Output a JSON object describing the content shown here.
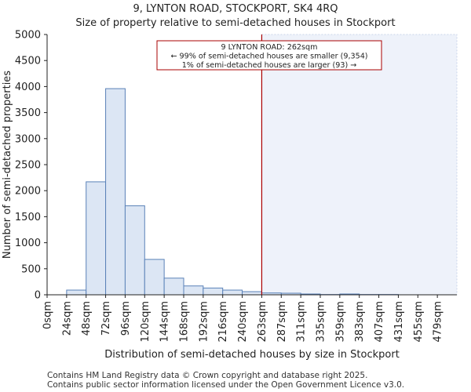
{
  "title": "9, LYNTON ROAD, STOCKPORT, SK4 4RQ",
  "subtitle": "Size of property relative to semi-detached houses in Stockport",
  "footer": [
    "Contains HM Land Registry data © Crown copyright and database right 2025.",
    "Contains public sector information licensed under the Open Government Licence v3.0."
  ],
  "colors": {
    "bar_fill": "#dce6f4",
    "bar_edge": "#5a82b8",
    "highlight_fill": "#eef2fa",
    "marker_line": "#aa0000",
    "annotation_border": "#aa0000",
    "axis": "#222222"
  },
  "chart_data": {
    "type": "bar",
    "title": "9, LYNTON ROAD, STOCKPORT, SK4 4RQ",
    "subtitle": "Size of property relative to semi-detached houses in Stockport",
    "xlabel": "Distribution of semi-detached houses by size in Stockport",
    "ylabel": "Number of semi-detached properties",
    "ylim": [
      0,
      5000
    ],
    "yticks": [
      0,
      500,
      1000,
      1500,
      2000,
      2500,
      3000,
      3500,
      4000,
      4500,
      5000
    ],
    "categories": [
      "0sqm",
      "24sqm",
      "48sqm",
      "72sqm",
      "96sqm",
      "120sqm",
      "144sqm",
      "168sqm",
      "192sqm",
      "216sqm",
      "240sqm",
      "263sqm",
      "287sqm",
      "311sqm",
      "335sqm",
      "359sqm",
      "383sqm",
      "407sqm",
      "431sqm",
      "455sqm",
      "479sqm"
    ],
    "values": [
      0,
      90,
      2170,
      3960,
      1710,
      680,
      320,
      170,
      130,
      90,
      60,
      35,
      30,
      15,
      5,
      15,
      5,
      5,
      0,
      0,
      0
    ],
    "marker": {
      "value": 262,
      "bin_index": 11,
      "label": "9 LYNTON ROAD: 262sqm"
    },
    "annotation": [
      "9 LYNTON ROAD: 262sqm",
      "← 99% of semi-detached houses are smaller (9,354)",
      "1% of semi-detached houses are larger (93) →"
    ],
    "grid": false,
    "legend": "none"
  }
}
